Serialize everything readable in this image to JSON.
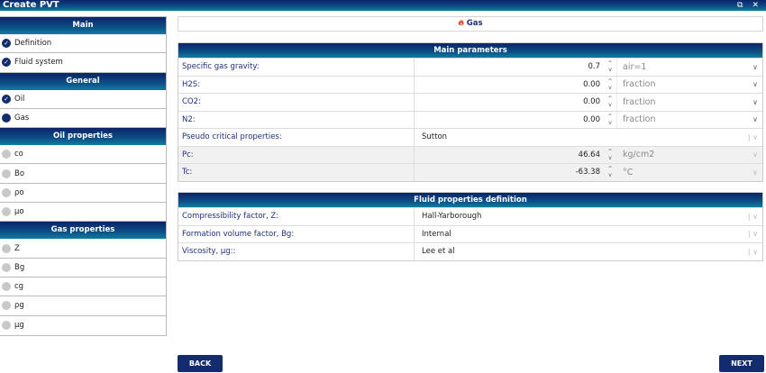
{
  "window": {
    "title": "Create PVT",
    "restore_icon": "restore-icon",
    "close_icon": "close-icon"
  },
  "sidebar": {
    "sections": [
      {
        "title": "Main",
        "items": [
          {
            "label": "Definition",
            "status": "done"
          },
          {
            "label": "Fluid system",
            "status": "done"
          }
        ]
      },
      {
        "title": "General",
        "items": [
          {
            "label": "Oil",
            "status": "done"
          },
          {
            "label": "Gas",
            "status": "current"
          }
        ]
      },
      {
        "title": "Oil properties",
        "items": [
          {
            "label": "co",
            "status": "todo"
          },
          {
            "label": "Bo",
            "status": "todo"
          },
          {
            "label": "ρo",
            "status": "todo"
          },
          {
            "label": "μo",
            "status": "todo"
          }
        ]
      },
      {
        "title": "Gas properties",
        "items": [
          {
            "label": "Z",
            "status": "todo"
          },
          {
            "label": "Bg",
            "status": "todo"
          },
          {
            "label": "cg",
            "status": "todo"
          },
          {
            "label": "ρg",
            "status": "todo"
          },
          {
            "label": "μg",
            "status": "todo"
          }
        ]
      }
    ]
  },
  "page": {
    "title": "Gas",
    "icon": "flame-icon"
  },
  "main_parameters": {
    "title": "Main parameters",
    "rows": [
      {
        "label": "Specific gas gravity:",
        "value": "0.7",
        "unit": "air=1"
      },
      {
        "label": "H2S:",
        "value": "0.00",
        "unit": "fraction"
      },
      {
        "label": "CO2:",
        "value": "0.00",
        "unit": "fraction"
      },
      {
        "label": "N2:",
        "value": "0.00",
        "unit": "fraction"
      },
      {
        "label": "Pseudo critical properties:",
        "select": "Sutton"
      },
      {
        "label": "Pc:",
        "value": "46.64",
        "unit": "kg/cm2",
        "disabled": true
      },
      {
        "label": "Tc:",
        "value": "-63.38",
        "unit": "°C",
        "disabled": true
      }
    ]
  },
  "fluid_properties": {
    "title": "Fluid properties definition",
    "rows": [
      {
        "label": "Compressibility factor, Z:",
        "select": "Hall-Yarborough"
      },
      {
        "label": "Formation volume factor, Bg:",
        "select": "Internal"
      },
      {
        "label": "Viscosity, μg::",
        "select": "Lee et al"
      }
    ]
  },
  "buttons": {
    "back": "BACK",
    "next": "NEXT"
  },
  "colors": {
    "header_top": "#0b2468",
    "header_bottom": "#0f7ea0",
    "label": "#1e2f7a",
    "flame": "#e0331a"
  }
}
